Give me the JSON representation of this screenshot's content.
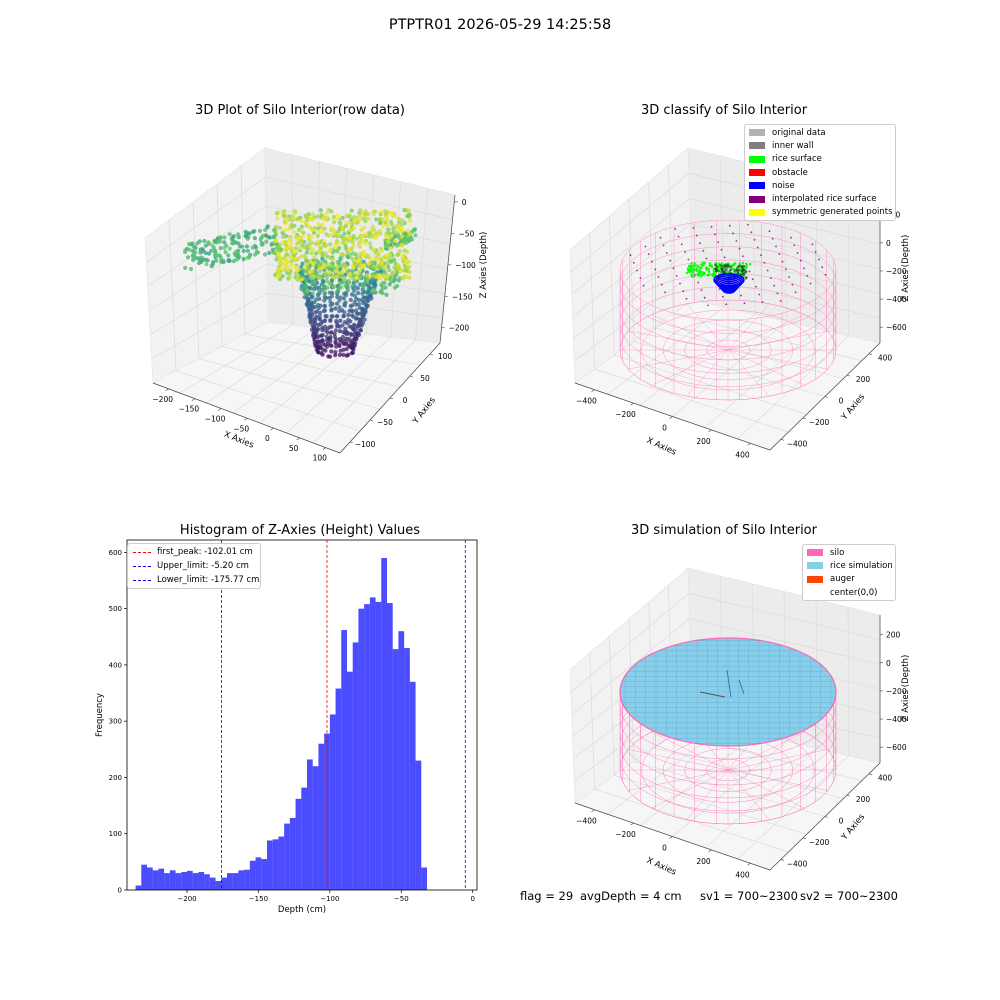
{
  "suptitle": "PTPTR01 2026-05-29 14:25:58",
  "chart_data": [
    {
      "type": "scatter",
      "projection": "3d",
      "title": "3D Plot of Silo Interior(row data)",
      "xlabel": "X Axies",
      "ylabel": "Y Axies",
      "zlabel": "Z Axies (Depth)",
      "x_ticks": [
        "−200",
        "−150",
        "−100",
        "−50",
        "0",
        "50",
        "100"
      ],
      "y_ticks": [
        "−100",
        "−50",
        "0",
        "50",
        "100"
      ],
      "z_ticks": [
        "0",
        "−50",
        "−100",
        "−150",
        "−200"
      ],
      "xlim": [
        -230,
        110
      ],
      "ylim": [
        -120,
        120
      ],
      "zlim": [
        -240,
        10
      ],
      "colormap": "viridis",
      "grid": true
    },
    {
      "type": "scatter",
      "projection": "3d",
      "title": "3D classify of Silo Interior",
      "xlabel": "X Axies",
      "ylabel": "Y Axies",
      "zlabel": "Z Axies (Depth)",
      "x_ticks": [
        "−400",
        "−200",
        "0",
        "200",
        "400"
      ],
      "y_ticks": [
        "−400",
        "−200",
        "0",
        "200",
        "400"
      ],
      "z_ticks": [
        "200",
        "0",
        "−200",
        "−400",
        "−600"
      ],
      "xlim": [
        -500,
        500
      ],
      "ylim": [
        -500,
        500
      ],
      "zlim": [
        -750,
        250
      ],
      "legend_placement": "top-right",
      "legend": [
        {
          "label": "original data",
          "color": "#b3b3b3"
        },
        {
          "label": "inner wall",
          "color": "#808080"
        },
        {
          "label": "rice surface",
          "color": "#00ff00"
        },
        {
          "label": "obstacle",
          "color": "#ff0000"
        },
        {
          "label": "noise",
          "color": "#0000ff"
        },
        {
          "label": "interpolated rice surface",
          "color": "#800080"
        },
        {
          "label": "symmetric generated points",
          "color": "#ffff00"
        }
      ],
      "grid": true
    },
    {
      "type": "bar",
      "title": "Histogram of Z-Axies (Height) Values",
      "xlabel": "Depth (cm)",
      "ylabel": "Frequency",
      "xlim": [
        -242,
        3
      ],
      "ylim": [
        0,
        622
      ],
      "x_ticks": [
        -200,
        -150,
        -100,
        -50,
        0
      ],
      "y_ticks": [
        0,
        100,
        200,
        300,
        400,
        500,
        600
      ],
      "bin_start": -236,
      "bin_width": 4,
      "color": "#0000ff",
      "values": [
        8,
        45,
        40,
        35,
        38,
        30,
        35,
        30,
        32,
        34,
        30,
        32,
        28,
        22,
        16,
        22,
        30,
        30,
        35,
        36,
        52,
        58,
        55,
        88,
        90,
        95,
        118,
        128,
        162,
        182,
        232,
        220,
        260,
        278,
        312,
        358,
        462,
        388,
        440,
        500,
        508,
        520,
        512,
        590,
        510,
        428,
        460,
        430,
        370,
        230,
        40
      ],
      "vlines": [
        {
          "label": "first_peak: -102.01 cm",
          "x": -102.01,
          "color": "#ff0000"
        },
        {
          "label": "Upper_limit: -5.20 cm",
          "x": -5.2,
          "color": "#0000ff"
        },
        {
          "label": "Lower_limit: -175.77 cm",
          "x": -175.77,
          "color": "#0000ff"
        }
      ],
      "legend_placement": "top-left"
    },
    {
      "type": "surface",
      "projection": "3d",
      "title": "3D simulation of Silo Interior",
      "xlabel": "X Axies",
      "ylabel": "Y Axies",
      "zlabel": "Z Axies (Depth)",
      "x_ticks": [
        "−400",
        "−200",
        "0",
        "200",
        "400"
      ],
      "y_ticks": [
        "−400",
        "−200",
        "0",
        "200",
        "400"
      ],
      "z_ticks": [
        "200",
        "0",
        "−200",
        "−400",
        "−600"
      ],
      "xlim": [
        -500,
        500
      ],
      "ylim": [
        -500,
        500
      ],
      "zlim": [
        -750,
        250
      ],
      "legend_placement": "top-right",
      "legend": [
        {
          "label": "silo",
          "color": "#ff69b4"
        },
        {
          "label": "rice simulation",
          "color": "#87ceeb"
        },
        {
          "label": "auger",
          "color": "#ff4500"
        },
        {
          "label": "center(0,0)",
          "color": "#ffffff"
        }
      ],
      "grid": true
    }
  ],
  "footer": {
    "flag": "flag = 29",
    "avg": "avgDepth = 4 cm",
    "sv1": "sv1 = 700~2300",
    "sv2": "sv2 = 700~2300"
  }
}
